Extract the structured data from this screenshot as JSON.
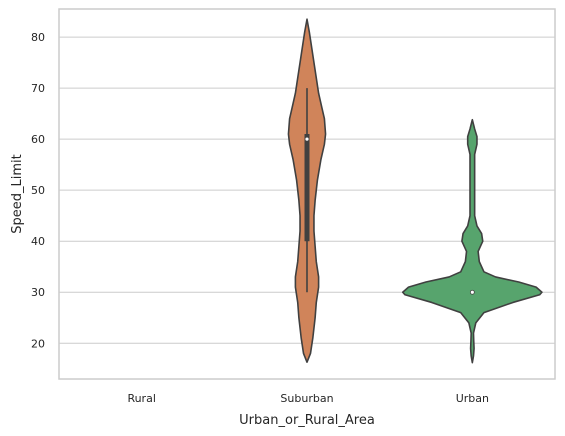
{
  "chart_data": {
    "type": "violin",
    "xlabel": "Urban_or_Rural_Area",
    "ylabel": "Speed_Limit",
    "ylim": [
      13,
      85.5
    ],
    "yticks": [
      20,
      30,
      40,
      50,
      60,
      70,
      80
    ],
    "grid": true,
    "categories": [
      "Rural",
      "Suburban",
      "Urban"
    ],
    "violins": [
      {
        "category": "Rural",
        "color": null,
        "profile": []
      },
      {
        "category": "Suburban",
        "color": "#d0845a",
        "median": 60,
        "q1": 40,
        "q3": 61,
        "whisker_low": 30,
        "whisker_high": 70,
        "profile": [
          [
            16.3,
            0.0
          ],
          [
            18,
            0.03
          ],
          [
            21,
            0.05
          ],
          [
            25,
            0.07
          ],
          [
            28,
            0.08
          ],
          [
            31,
            0.1
          ],
          [
            33,
            0.1
          ],
          [
            36,
            0.08
          ],
          [
            39,
            0.07
          ],
          [
            42,
            0.06
          ],
          [
            45,
            0.06
          ],
          [
            48,
            0.07
          ],
          [
            52,
            0.09
          ],
          [
            56,
            0.12
          ],
          [
            59,
            0.15
          ],
          [
            61,
            0.16
          ],
          [
            64,
            0.15
          ],
          [
            66,
            0.13
          ],
          [
            69,
            0.1
          ],
          [
            72,
            0.08
          ],
          [
            75,
            0.06
          ],
          [
            78,
            0.04
          ],
          [
            81,
            0.02
          ],
          [
            83.5,
            0.0
          ]
        ]
      },
      {
        "category": "Urban",
        "color": "#57a46d",
        "median": 30,
        "q1": 30,
        "q3": 30,
        "whisker_low": 30,
        "whisker_high": 30,
        "profile": [
          [
            16.2,
            0.0
          ],
          [
            17.5,
            0.01
          ],
          [
            19,
            0.015
          ],
          [
            20.5,
            0.012
          ],
          [
            22,
            0.01
          ],
          [
            24,
            0.03
          ],
          [
            26,
            0.1
          ],
          [
            28,
            0.35
          ],
          [
            29.5,
            0.58
          ],
          [
            30,
            0.6
          ],
          [
            31,
            0.55
          ],
          [
            32,
            0.4
          ],
          [
            33,
            0.2
          ],
          [
            34,
            0.1
          ],
          [
            36,
            0.06
          ],
          [
            38,
            0.05
          ],
          [
            40,
            0.09
          ],
          [
            41.5,
            0.08
          ],
          [
            43,
            0.04
          ],
          [
            45,
            0.02
          ],
          [
            48,
            0.02
          ],
          [
            52,
            0.02
          ],
          [
            55,
            0.02
          ],
          [
            57,
            0.02
          ],
          [
            59,
            0.04
          ],
          [
            60.5,
            0.04
          ],
          [
            62,
            0.02
          ],
          [
            63.8,
            0.0
          ]
        ]
      }
    ]
  }
}
